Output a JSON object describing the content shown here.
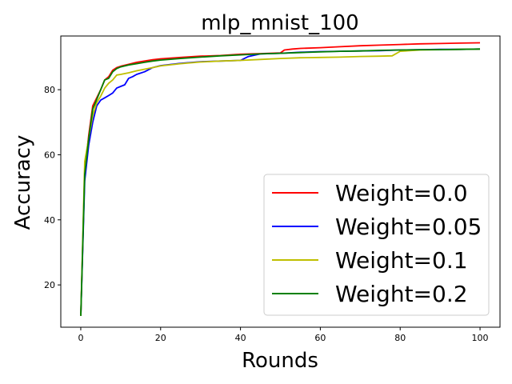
{
  "chart_data": {
    "type": "line",
    "title": "mlp_mnist_100",
    "xlabel": "Rounds",
    "ylabel": "Accuracy",
    "xlim": [
      -5,
      105
    ],
    "ylim": [
      7,
      96.5
    ],
    "xticks": [
      0,
      20,
      40,
      60,
      80,
      100
    ],
    "yticks": [
      20,
      40,
      60,
      80
    ],
    "grid": false,
    "legend_position": "lower-right",
    "series": [
      {
        "name": "Weight=0.0",
        "color": "#ff0000",
        "points": [
          [
            0,
            10.5
          ],
          [
            1,
            55
          ],
          [
            2,
            66
          ],
          [
            3,
            75
          ],
          [
            4,
            77.5
          ],
          [
            5,
            80
          ],
          [
            6,
            83
          ],
          [
            7,
            84
          ],
          [
            8,
            86
          ],
          [
            9,
            86.8
          ],
          [
            10,
            87.2
          ],
          [
            12,
            87.8
          ],
          [
            14,
            88.4
          ],
          [
            16,
            88.8
          ],
          [
            18,
            89.2
          ],
          [
            20,
            89.5
          ],
          [
            25,
            89.9
          ],
          [
            30,
            90.3
          ],
          [
            35,
            90.5
          ],
          [
            40,
            90.9
          ],
          [
            45,
            91.1
          ],
          [
            50,
            91.3
          ],
          [
            51,
            92.2
          ],
          [
            53,
            92.5
          ],
          [
            55,
            92.7
          ],
          [
            60,
            92.9
          ],
          [
            65,
            93.2
          ],
          [
            70,
            93.5
          ],
          [
            75,
            93.7
          ],
          [
            80,
            93.9
          ],
          [
            85,
            94.1
          ],
          [
            90,
            94.2
          ],
          [
            95,
            94.3
          ],
          [
            100,
            94.4
          ]
        ]
      },
      {
        "name": "Weight=0.05",
        "color": "#0000ff",
        "points": [
          [
            0,
            10.5
          ],
          [
            1,
            52
          ],
          [
            2,
            63
          ],
          [
            3,
            70
          ],
          [
            4,
            75
          ],
          [
            5,
            76.8
          ],
          [
            6,
            77.5
          ],
          [
            7,
            78.2
          ],
          [
            8,
            79
          ],
          [
            9,
            80.5
          ],
          [
            10,
            81
          ],
          [
            11,
            81.5
          ],
          [
            12,
            83.5
          ],
          [
            13,
            84
          ],
          [
            14,
            84.7
          ],
          [
            16,
            85.5
          ],
          [
            18,
            86.8
          ],
          [
            20,
            87.4
          ],
          [
            25,
            88.1
          ],
          [
            30,
            88.6
          ],
          [
            35,
            88.8
          ],
          [
            40,
            89
          ],
          [
            42,
            90.2
          ],
          [
            45,
            91
          ],
          [
            50,
            91.2
          ],
          [
            55,
            91.5
          ],
          [
            60,
            91.7
          ],
          [
            65,
            91.8
          ],
          [
            70,
            91.9
          ],
          [
            75,
            92
          ],
          [
            80,
            92.2
          ],
          [
            85,
            92.3
          ],
          [
            90,
            92.4
          ],
          [
            95,
            92.4
          ],
          [
            100,
            92.5
          ]
        ]
      },
      {
        "name": "Weight=0.1",
        "color": "#bfbf00",
        "points": [
          [
            0,
            10.5
          ],
          [
            1,
            58
          ],
          [
            2,
            65
          ],
          [
            3,
            72
          ],
          [
            4,
            76
          ],
          [
            5,
            78
          ],
          [
            6,
            80.5
          ],
          [
            7,
            82
          ],
          [
            8,
            83
          ],
          [
            9,
            84.5
          ],
          [
            10,
            84.7
          ],
          [
            12,
            85.2
          ],
          [
            14,
            85.8
          ],
          [
            16,
            86.3
          ],
          [
            18,
            86.8
          ],
          [
            20,
            87.3
          ],
          [
            25,
            88
          ],
          [
            30,
            88.5
          ],
          [
            35,
            88.8
          ],
          [
            40,
            89
          ],
          [
            45,
            89.3
          ],
          [
            50,
            89.6
          ],
          [
            55,
            89.8
          ],
          [
            60,
            89.9
          ],
          [
            65,
            90
          ],
          [
            70,
            90.2
          ],
          [
            75,
            90.3
          ],
          [
            78,
            90.4
          ],
          [
            80,
            91.8
          ],
          [
            85,
            92.2
          ],
          [
            90,
            92.3
          ],
          [
            95,
            92.4
          ],
          [
            100,
            92.5
          ]
        ]
      },
      {
        "name": "Weight=0.2",
        "color": "#008000",
        "points": [
          [
            0,
            10.5
          ],
          [
            1,
            54
          ],
          [
            2,
            65
          ],
          [
            3,
            74
          ],
          [
            4,
            77
          ],
          [
            5,
            80
          ],
          [
            6,
            83
          ],
          [
            7,
            83.5
          ],
          [
            8,
            85.5
          ],
          [
            9,
            86.5
          ],
          [
            10,
            87
          ],
          [
            12,
            87.6
          ],
          [
            14,
            88
          ],
          [
            16,
            88.4
          ],
          [
            18,
            88.8
          ],
          [
            20,
            89.1
          ],
          [
            25,
            89.6
          ],
          [
            30,
            90
          ],
          [
            35,
            90.4
          ],
          [
            40,
            90.7
          ],
          [
            45,
            91
          ],
          [
            50,
            91.2
          ],
          [
            55,
            91.4
          ],
          [
            60,
            91.6
          ],
          [
            65,
            91.8
          ],
          [
            70,
            91.9
          ],
          [
            75,
            92.1
          ],
          [
            80,
            92.2
          ],
          [
            85,
            92.3
          ],
          [
            90,
            92.3
          ],
          [
            95,
            92.4
          ],
          [
            100,
            92.5
          ]
        ]
      }
    ]
  }
}
